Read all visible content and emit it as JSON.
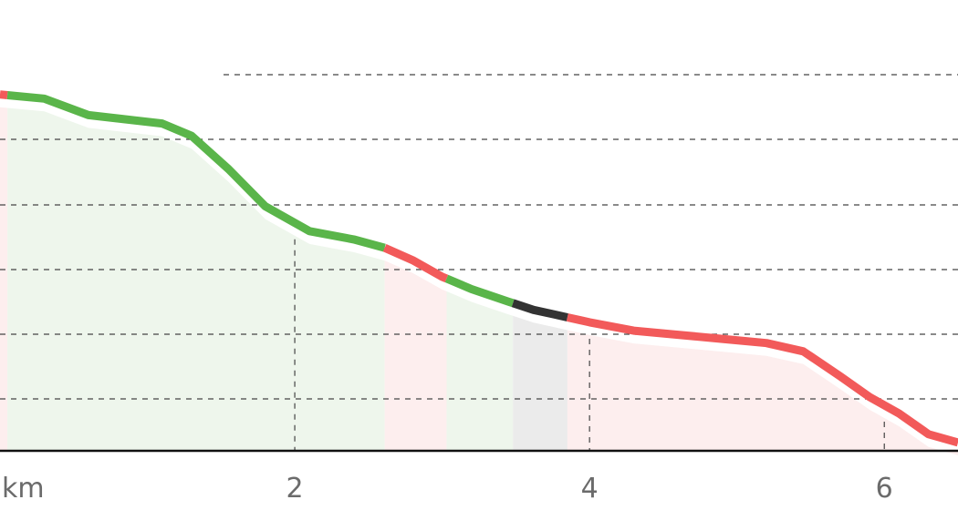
{
  "chart_data": {
    "type": "area",
    "title": "",
    "xlabel": "",
    "ylabel": "",
    "x_unit": "km",
    "xlim": [
      0,
      6.5
    ],
    "x_ticks": [
      {
        "value": 0,
        "label": "km"
      },
      {
        "value": 2,
        "label": "2"
      },
      {
        "value": 4,
        "label": "4"
      },
      {
        "value": 6,
        "label": "6"
      }
    ],
    "profile": [
      [
        0.0,
        0.86
      ],
      [
        0.3,
        0.85
      ],
      [
        0.6,
        0.81
      ],
      [
        0.85,
        0.8
      ],
      [
        1.1,
        0.79
      ],
      [
        1.3,
        0.76
      ],
      [
        1.55,
        0.68
      ],
      [
        1.8,
        0.59
      ],
      [
        2.1,
        0.53
      ],
      [
        2.4,
        0.51
      ],
      [
        2.61,
        0.49
      ],
      [
        2.8,
        0.46
      ],
      [
        3.0,
        0.42
      ],
      [
        3.2,
        0.39
      ],
      [
        3.45,
        0.36
      ],
      [
        3.62,
        0.34
      ],
      [
        3.75,
        0.33
      ],
      [
        4.0,
        0.31
      ],
      [
        4.3,
        0.29
      ],
      [
        4.6,
        0.28
      ],
      [
        4.9,
        0.27
      ],
      [
        5.2,
        0.26
      ],
      [
        5.45,
        0.24
      ],
      [
        5.7,
        0.18
      ],
      [
        5.9,
        0.13
      ],
      [
        6.1,
        0.09
      ],
      [
        6.3,
        0.04
      ],
      [
        6.5,
        0.02
      ]
    ],
    "segments": [
      {
        "from": 0.0,
        "to": 0.05,
        "color": "#f25a5a"
      },
      {
        "from": 0.05,
        "to": 2.61,
        "color": "#5ab54a"
      },
      {
        "from": 2.61,
        "to": 3.03,
        "color": "#f25a5a"
      },
      {
        "from": 3.03,
        "to": 3.48,
        "color": "#5ab54a"
      },
      {
        "from": 3.48,
        "to": 3.85,
        "color": "#333333"
      },
      {
        "from": 3.85,
        "to": 6.5,
        "color": "#f25a5a"
      }
    ],
    "grid": true,
    "colors": {
      "good": "#5ab54a",
      "bad": "#f25a5a",
      "neutral": "#333333",
      "good_fill": "#eef6ec",
      "bad_fill": "#fdeeee",
      "neutral_fill": "#ebebeb"
    }
  }
}
